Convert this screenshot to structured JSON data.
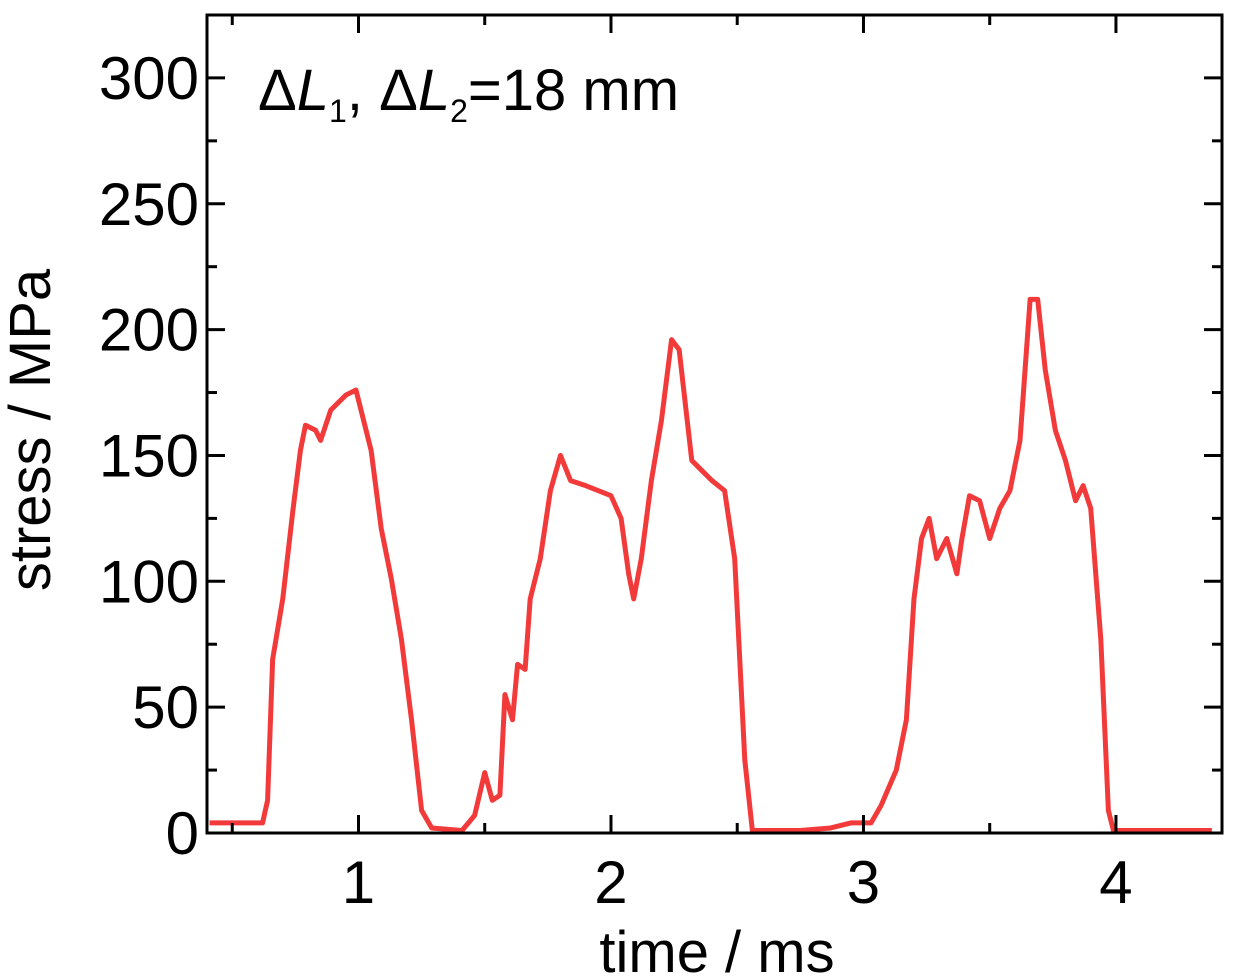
{
  "chart_data": {
    "type": "line",
    "annotation": "ΔL1, ΔL2=18 mm",
    "xlabel": "time / ms",
    "ylabel": "stress / MPa",
    "xlim": [
      0.4,
      4.42
    ],
    "ylim": [
      0,
      325
    ],
    "xticks": [
      1,
      2,
      3,
      4
    ],
    "xminorticks": [
      0.5,
      1.5,
      2.5,
      3.5
    ],
    "yticks": [
      0,
      50,
      100,
      150,
      200,
      250,
      300
    ],
    "yminorticks": [
      25,
      75,
      125,
      175,
      225,
      275
    ],
    "series": [
      {
        "name": "stress",
        "color": "#f23a3a",
        "x": [
          0.41,
          0.62,
          0.64,
          0.66,
          0.7,
          0.74,
          0.77,
          0.79,
          0.83,
          0.85,
          0.89,
          0.95,
          0.99,
          1.01,
          1.05,
          1.09,
          1.13,
          1.17,
          1.21,
          1.25,
          1.29,
          1.41,
          1.46,
          1.5,
          1.53,
          1.56,
          1.58,
          1.61,
          1.63,
          1.66,
          1.68,
          1.72,
          1.76,
          1.8,
          1.84,
          1.9,
          2.0,
          2.04,
          2.07,
          2.09,
          2.12,
          2.16,
          2.2,
          2.24,
          2.27,
          2.32,
          2.36,
          2.4,
          2.45,
          2.49,
          2.53,
          2.56,
          2.75,
          2.87,
          2.95,
          3.03,
          3.07,
          3.13,
          3.17,
          3.2,
          3.23,
          3.26,
          3.29,
          3.33,
          3.37,
          3.39,
          3.42,
          3.46,
          3.5,
          3.54,
          3.58,
          3.62,
          3.66,
          3.69,
          3.72,
          3.76,
          3.8,
          3.84,
          3.87,
          3.9,
          3.94,
          3.97,
          3.99,
          4.38
        ],
        "values": [
          4,
          4,
          13,
          69,
          93,
          128,
          152,
          162,
          160,
          156,
          168,
          174,
          176,
          168,
          152,
          121,
          101,
          77,
          45,
          9,
          2,
          1,
          7,
          24,
          13,
          15,
          55,
          45,
          67,
          65,
          93,
          109,
          136,
          150,
          140,
          138,
          134,
          125,
          103,
          93,
          109,
          140,
          164,
          196,
          192,
          148,
          144,
          140,
          136,
          109,
          29,
          1,
          1,
          2,
          4,
          4,
          11,
          25,
          45,
          93,
          117,
          125,
          109,
          117,
          103,
          117,
          134,
          132,
          117,
          129,
          136,
          156,
          212,
          212,
          184,
          160,
          148,
          132,
          138,
          129,
          77,
          9,
          1,
          1
        ]
      }
    ]
  }
}
